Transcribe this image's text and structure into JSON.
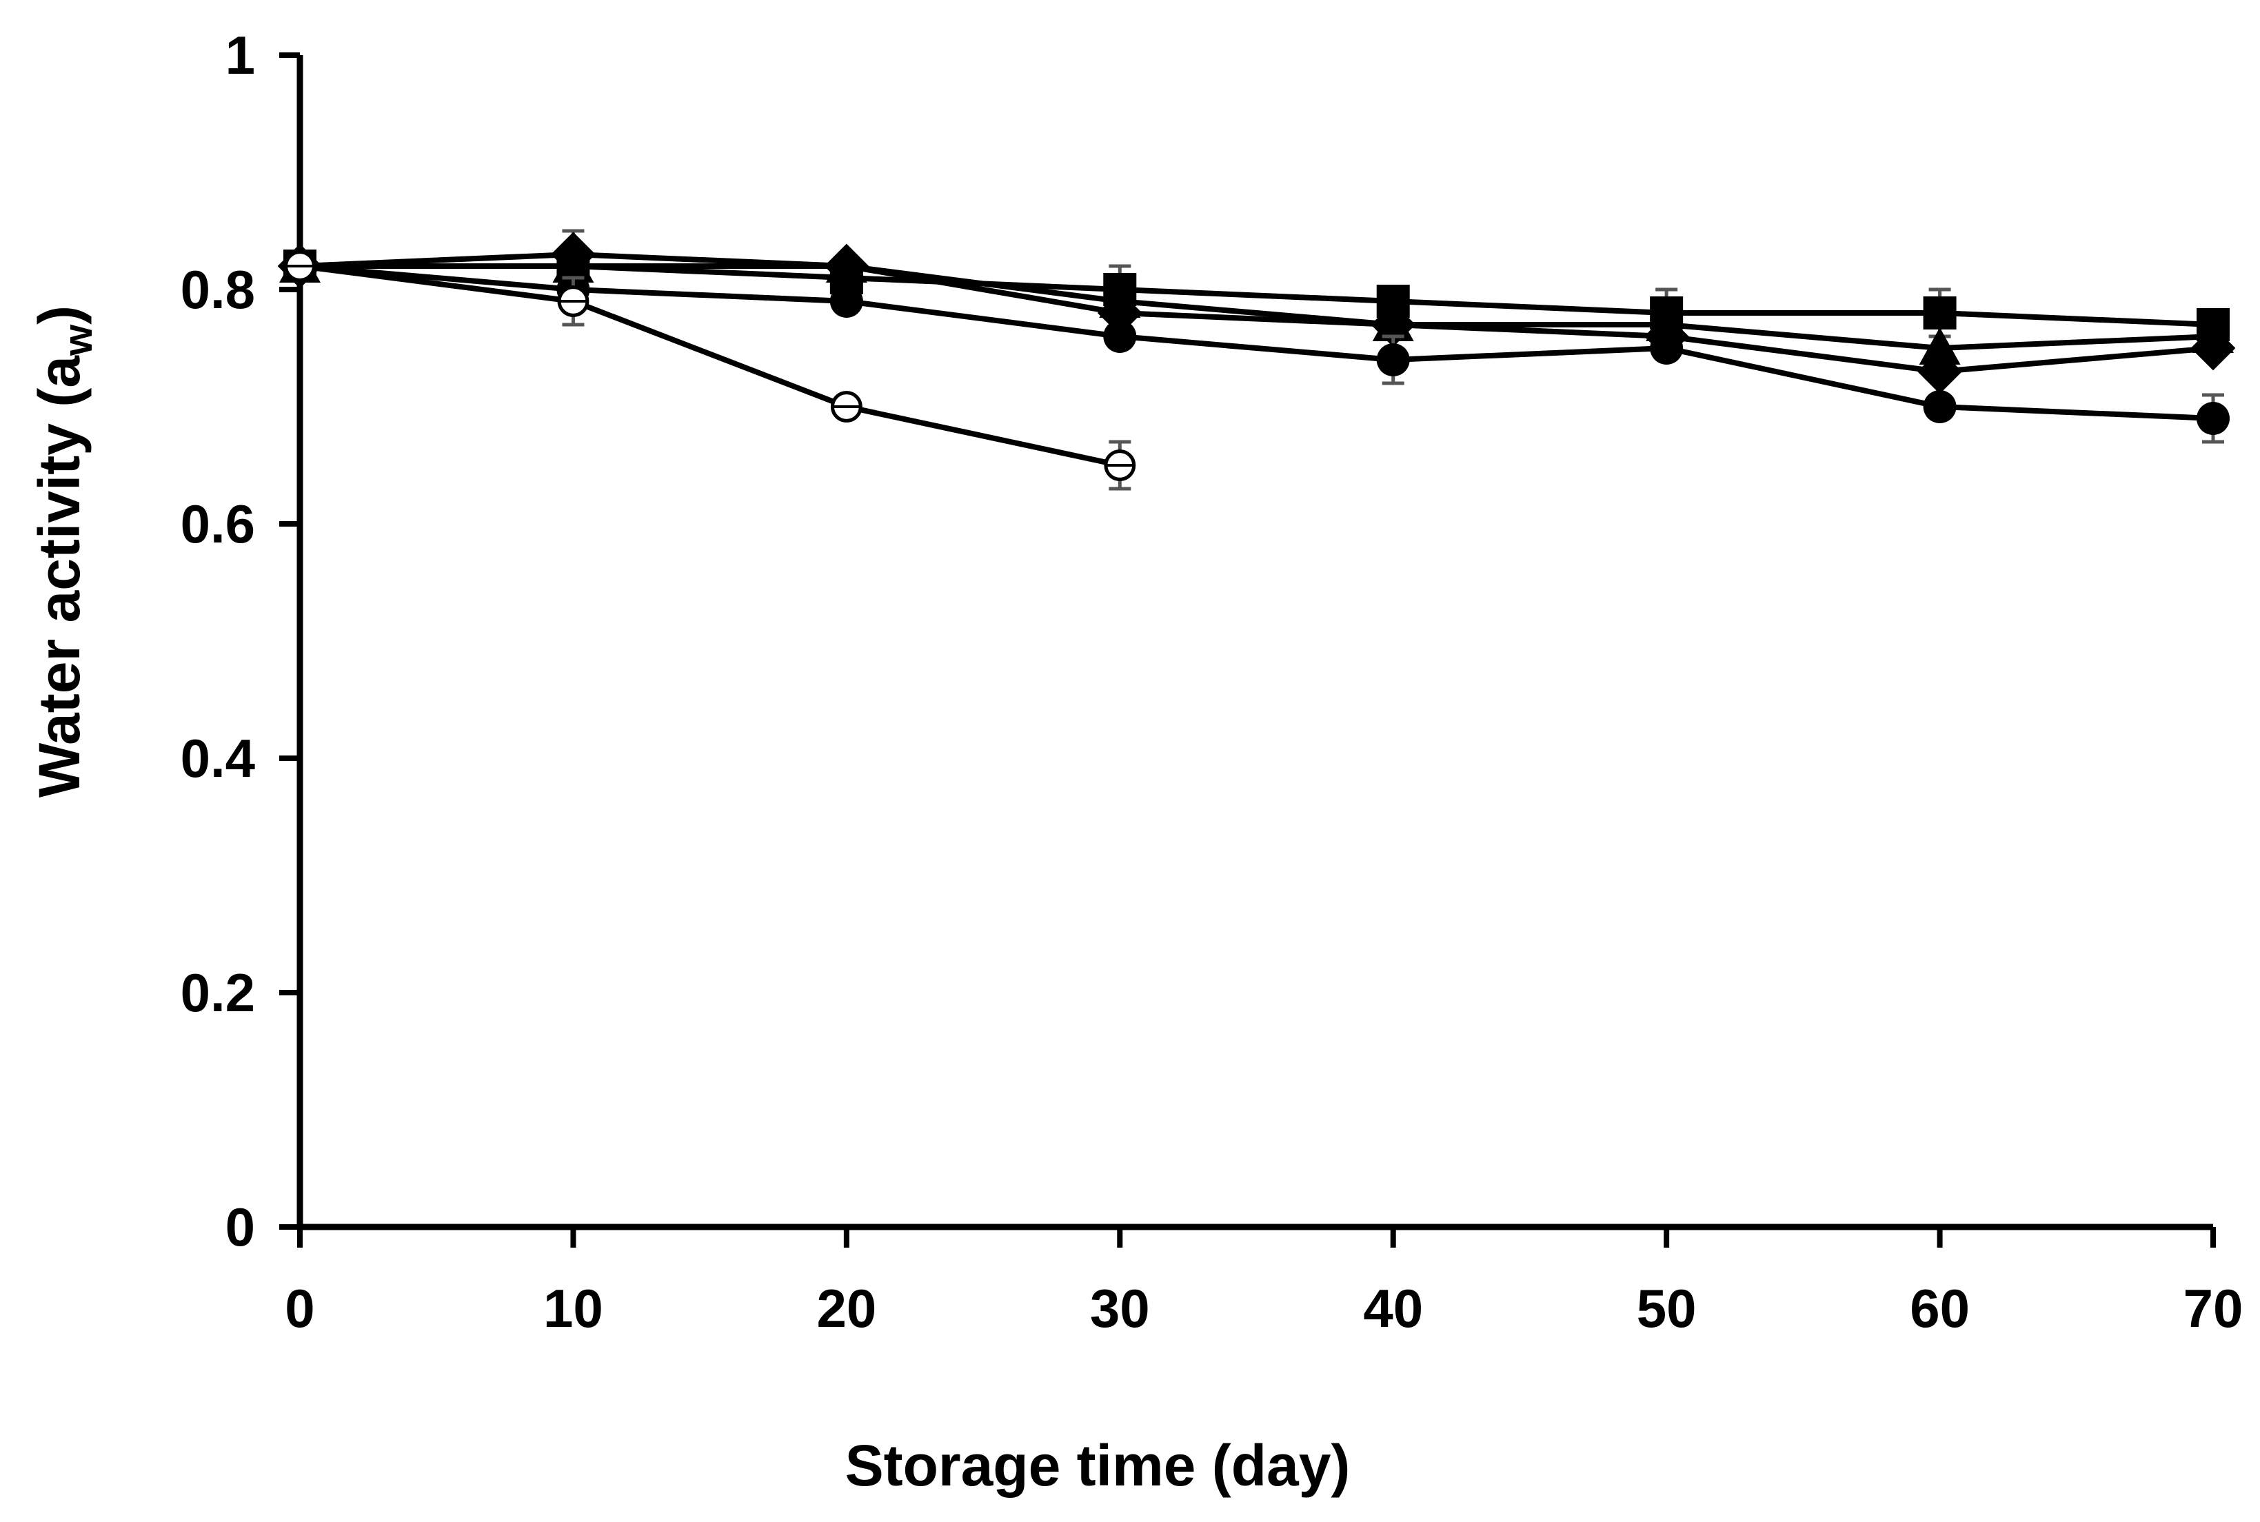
{
  "chart_data": {
    "type": "line",
    "xlabel": "Storage time (day)",
    "ylabel": "Water activity (a",
    "ylabel_sub": "w",
    "ylabel_close": ")",
    "xlim": [
      0,
      70
    ],
    "ylim": [
      0,
      1
    ],
    "x_ticks": [
      0,
      10,
      20,
      30,
      40,
      50,
      60,
      70
    ],
    "y_ticks": [
      0,
      0.2,
      0.4,
      0.6,
      0.8,
      1
    ],
    "y_tick_labels": [
      "0",
      "0.2",
      "0.4",
      "0.6",
      "0.8",
      "1"
    ],
    "grid": false,
    "line_color": "#000000",
    "error_bar_color": "#555555",
    "series": [
      {
        "marker": "square",
        "x": [
          0,
          10,
          20,
          30,
          40,
          50,
          60,
          70
        ],
        "y": [
          0.82,
          0.82,
          0.81,
          0.8,
          0.79,
          0.78,
          0.78,
          0.77
        ],
        "err": [
          0,
          0,
          0,
          0.02,
          0,
          0.02,
          0.02,
          0
        ]
      },
      {
        "marker": "triangle",
        "x": [
          0,
          10,
          20,
          30,
          40,
          50,
          60,
          70
        ],
        "y": [
          0.82,
          0.82,
          0.82,
          0.79,
          0.77,
          0.77,
          0.75,
          0.76
        ],
        "err": [
          0,
          0,
          0,
          0,
          0,
          0,
          0,
          0
        ]
      },
      {
        "marker": "diamond",
        "x": [
          0,
          10,
          20,
          30,
          40,
          50,
          60,
          70
        ],
        "y": [
          0.82,
          0.83,
          0.82,
          0.78,
          0.77,
          0.76,
          0.73,
          0.75
        ],
        "err": [
          0,
          0.02,
          0,
          0,
          0,
          0,
          0,
          0
        ]
      },
      {
        "marker": "circle",
        "x": [
          0,
          10,
          20,
          30,
          40,
          50,
          60,
          70
        ],
        "y": [
          0.82,
          0.8,
          0.79,
          0.76,
          0.74,
          0.75,
          0.7,
          0.69
        ],
        "err": [
          0,
          0,
          0,
          0,
          0.02,
          0,
          0,
          0.02
        ]
      },
      {
        "marker": "open-circle",
        "x": [
          0,
          10,
          20,
          30
        ],
        "y": [
          0.82,
          0.79,
          0.7,
          0.65
        ],
        "err": [
          0,
          0.02,
          0,
          0.02
        ]
      }
    ]
  }
}
